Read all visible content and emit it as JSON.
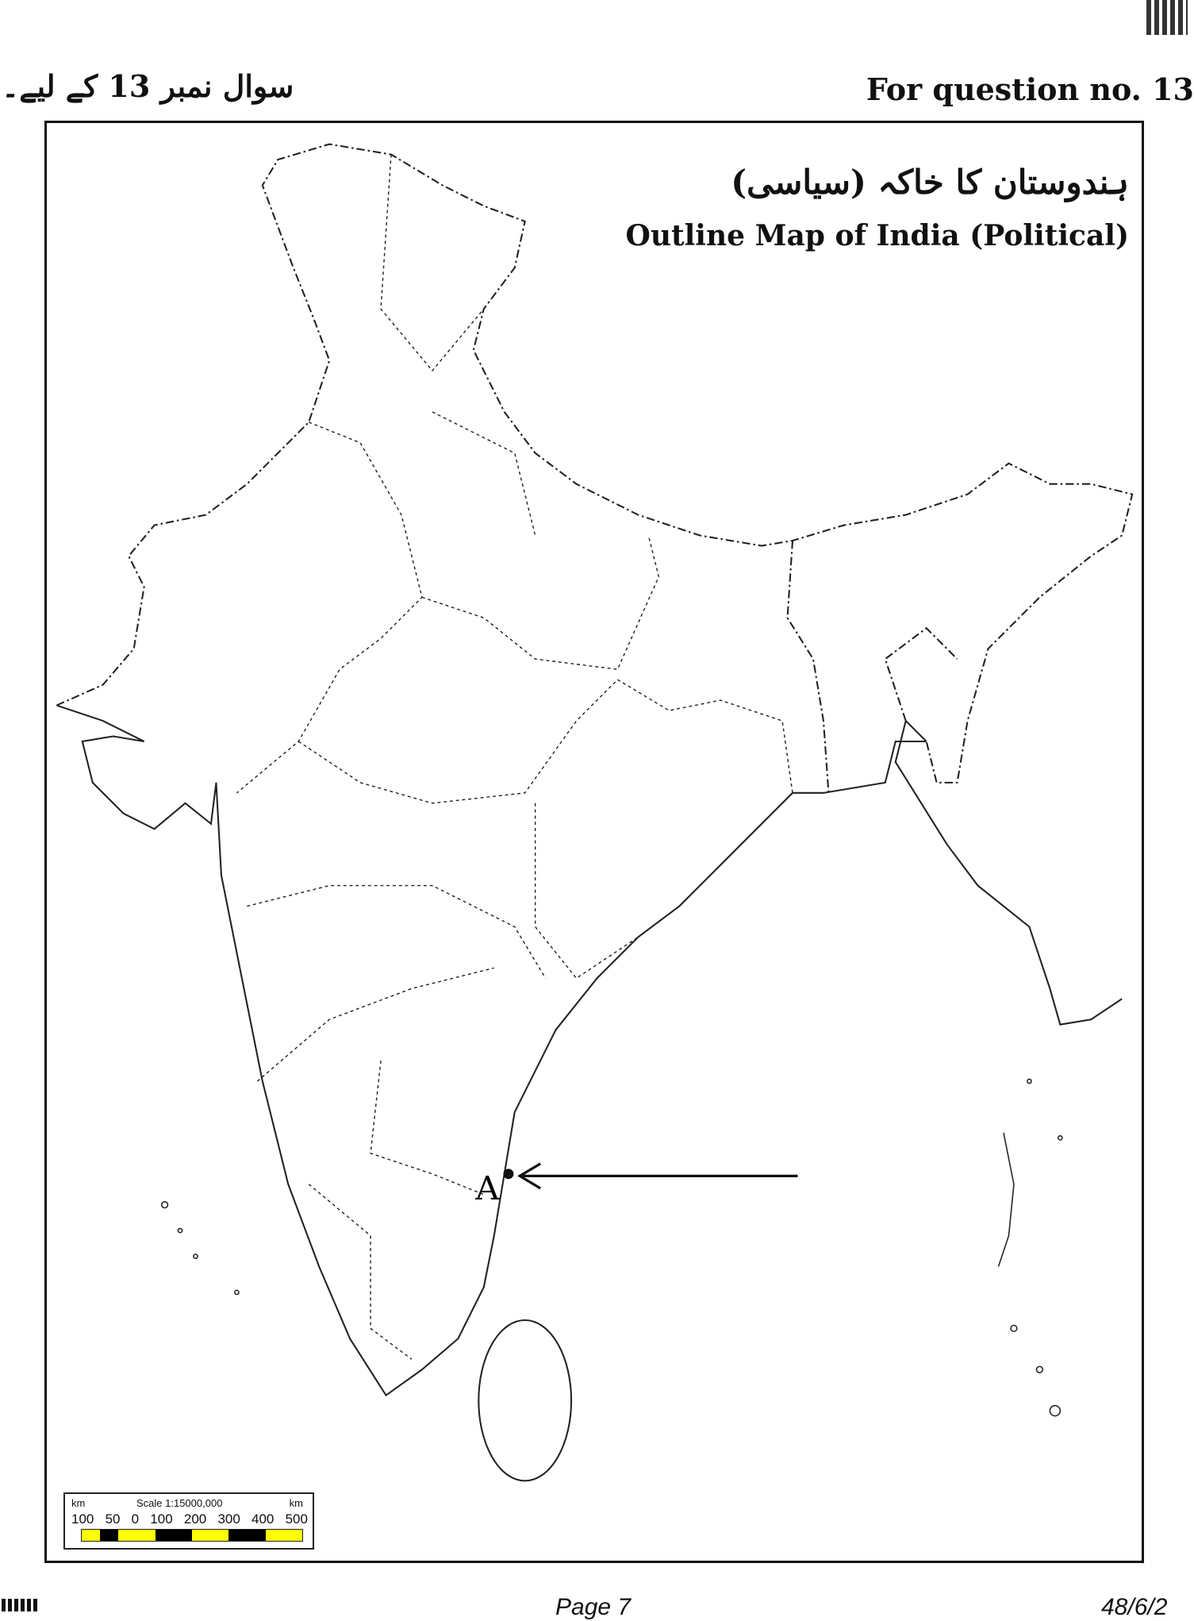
{
  "header": {
    "question_en": "For question no. 13",
    "question_ur": "سوال نمبر 13 کے لیے۔"
  },
  "map": {
    "title_ur": "ہندوستان کا خاکہ (سیاسی)",
    "title_en": "Outline Map of India (Political)",
    "point_label": "A",
    "scale": {
      "unit_left": "km",
      "unit_right": "km",
      "title": "Scale 1:15000,000",
      "ticks": [
        "100",
        "50",
        "0",
        "100",
        "200",
        "300",
        "400",
        "500"
      ],
      "colors": [
        "#ffff00",
        "#000000"
      ]
    }
  },
  "footer": {
    "page": "Page 7",
    "code": "48/6/2"
  }
}
